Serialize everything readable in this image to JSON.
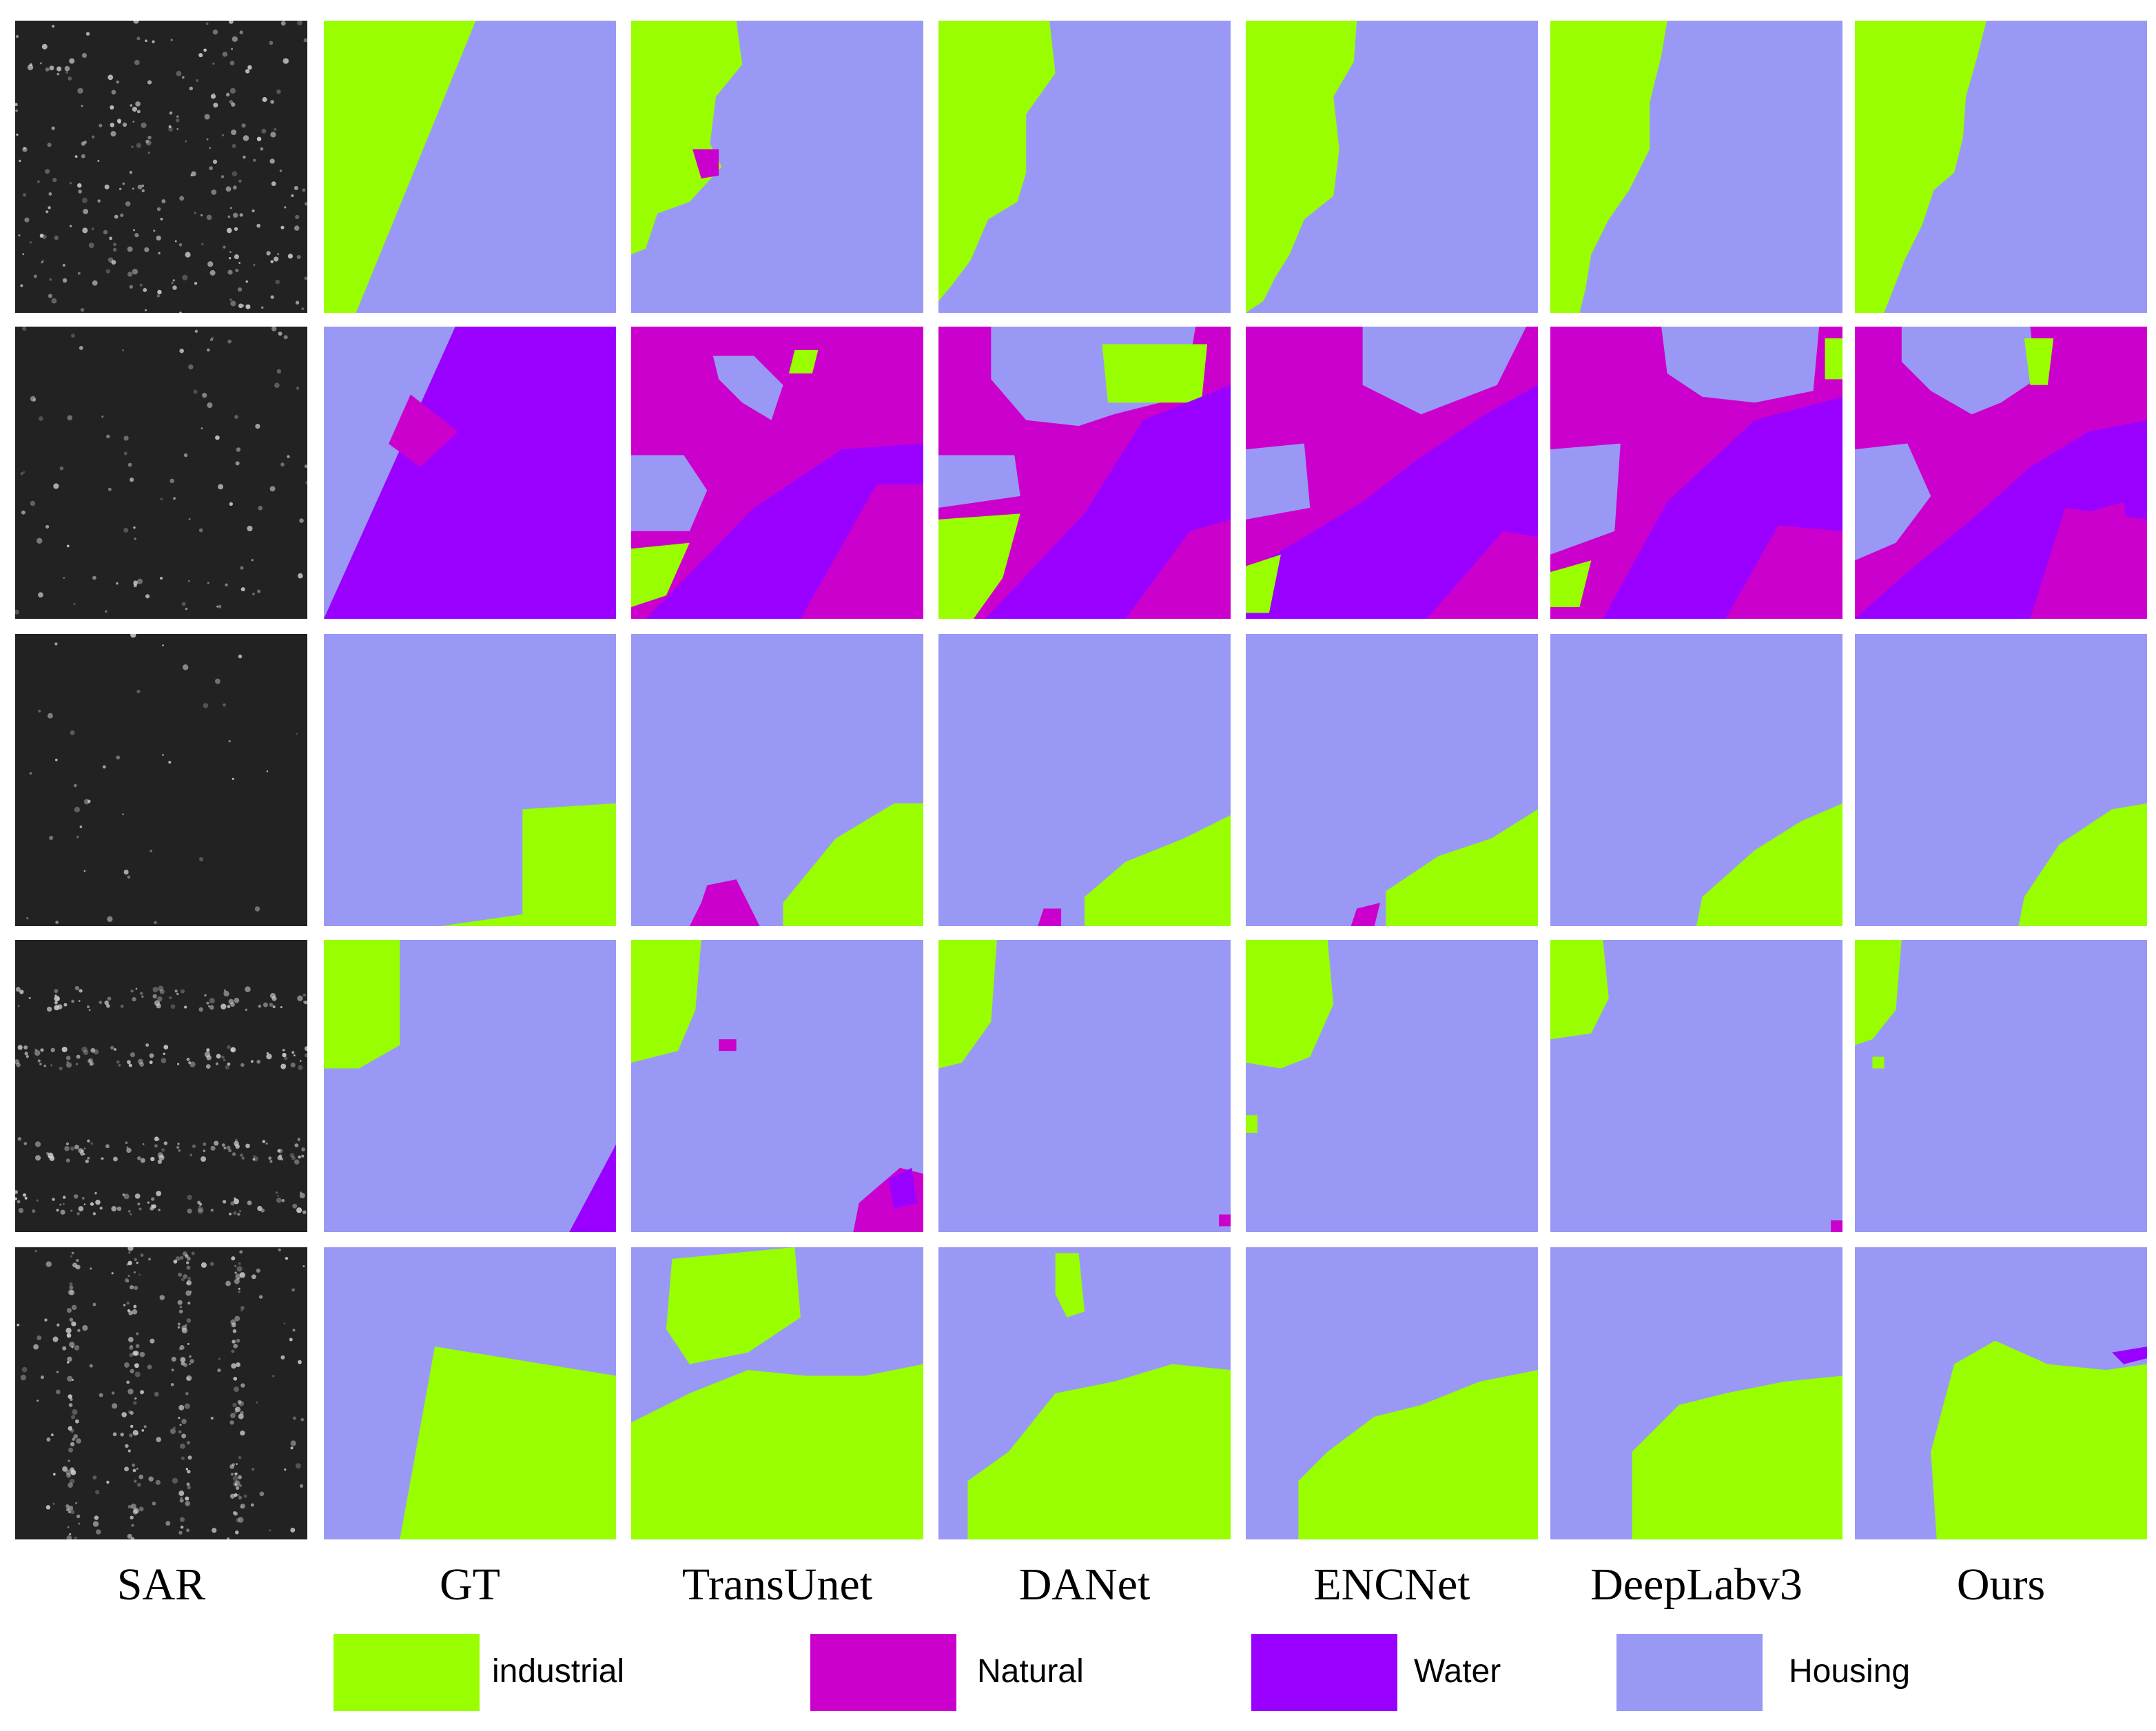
{
  "figure": {
    "columns": [
      "SAR",
      "GT",
      "TransUnet",
      "DANet",
      "ENCNet",
      "DeepLabv3",
      "Ours"
    ],
    "rows": 5,
    "sar_background": "#222222",
    "sar_speckle": "#d9d9d9"
  },
  "legend": [
    {
      "label": "industrial",
      "color": "#99ff00"
    },
    {
      "label": "Natural",
      "color": "#cc00cc"
    },
    {
      "label": "Water",
      "color": "#9900ff"
    },
    {
      "label": "Housing",
      "color": "#9999f5"
    }
  ]
}
